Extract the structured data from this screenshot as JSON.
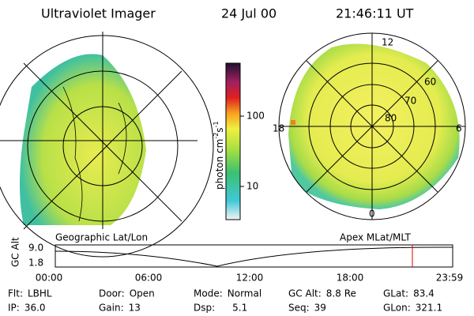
{
  "header": {
    "title": "Ultraviolet Imager",
    "date": "24 Jul 00",
    "time": "21:46:11 UT"
  },
  "colorbar": {
    "label": "photon cm",
    "exp1": "-2",
    "unit2": "s",
    "exp2": "-1",
    "ticks": [
      "100",
      "10"
    ]
  },
  "polar": {
    "labels": [
      "12",
      "60",
      "70",
      "80",
      "18",
      "6",
      "0"
    ]
  },
  "orbit": {
    "left_label": "Geographic Lat/Lon",
    "right_label": "Apex MLat/MLT",
    "axis_label": "GC Alt",
    "y_labels": [
      "9.0",
      "1.8"
    ],
    "x_labels": [
      "00:00",
      "06:00",
      "12:00",
      "18:00",
      "23:59"
    ]
  },
  "footer": {
    "rows": [
      [
        [
          "Flt:",
          "LBHL"
        ],
        [
          "Door:",
          "Open"
        ],
        [
          "Mode:",
          "Normal"
        ],
        [
          "GC Alt:",
          "8.8 Re"
        ],
        [
          "GLat:",
          "83.4"
        ]
      ],
      [
        [
          "IP:",
          "36.0"
        ],
        [
          "Gain:",
          "13"
        ],
        [
          "Dsp:",
          "5.1"
        ],
        [
          "Seq:",
          "39"
        ],
        [
          "GLon:",
          "321.1"
        ]
      ]
    ]
  }
}
